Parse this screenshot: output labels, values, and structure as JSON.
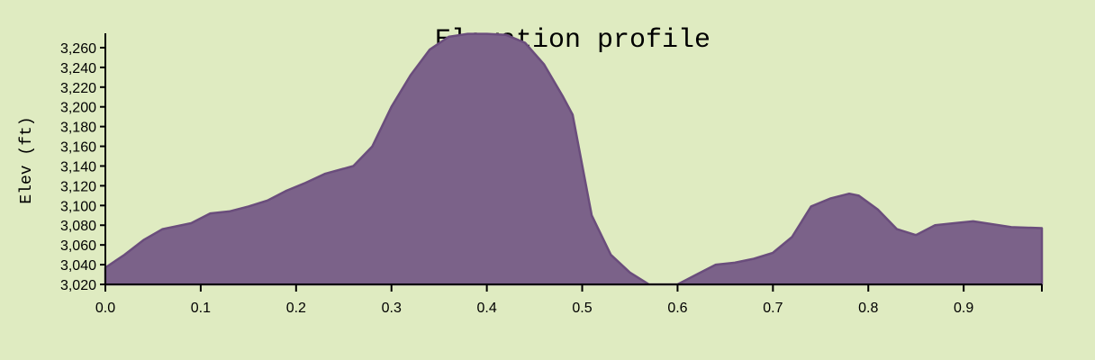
{
  "chart_data": {
    "type": "area",
    "title": "Elevation profile",
    "xlabel": "",
    "ylabel": "Elev (ft)",
    "xlim": [
      0,
      0.982
    ],
    "ylim": [
      3020,
      3270
    ],
    "x_ticks": [
      "0.0",
      "0.1",
      "0.2",
      "0.3",
      "0.4",
      "0.5",
      "0.6",
      "0.7",
      "0.8",
      "0.9"
    ],
    "y_ticks": [
      "3,020",
      "3,040",
      "3,060",
      "3,080",
      "3,100",
      "3,120",
      "3,140",
      "3,160",
      "3,180",
      "3,200",
      "3,220",
      "3,240",
      "3,260"
    ],
    "colors": {
      "fill": "#7b6289",
      "line": "#6a4d7c",
      "background": "#dfebc1"
    },
    "grid": false,
    "x": [
      0,
      0.02,
      0.04,
      0.06,
      0.09,
      0.11,
      0.13,
      0.15,
      0.17,
      0.19,
      0.21,
      0.23,
      0.26,
      0.28,
      0.3,
      0.32,
      0.34,
      0.36,
      0.38,
      0.4,
      0.42,
      0.44,
      0.46,
      0.48,
      0.49,
      0.51,
      0.53,
      0.55,
      0.57,
      0.6,
      0.62,
      0.64,
      0.66,
      0.68,
      0.7,
      0.72,
      0.74,
      0.76,
      0.78,
      0.79,
      0.81,
      0.83,
      0.85,
      0.87,
      0.89,
      0.91,
      0.93,
      0.95,
      0.982
    ],
    "y": [
      3037,
      3050,
      3065,
      3076,
      3082,
      3092,
      3094,
      3099,
      3105,
      3115,
      3123,
      3132,
      3140,
      3160,
      3200,
      3232,
      3258,
      3271,
      3274,
      3274,
      3273,
      3265,
      3243,
      3210,
      3192,
      3090,
      3050,
      3032,
      3020,
      3020,
      3030,
      3040,
      3042,
      3046,
      3052,
      3068,
      3099,
      3107,
      3112,
      3110,
      3096,
      3076,
      3070,
      3080,
      3082,
      3084,
      3081,
      3078,
      3077
    ]
  }
}
